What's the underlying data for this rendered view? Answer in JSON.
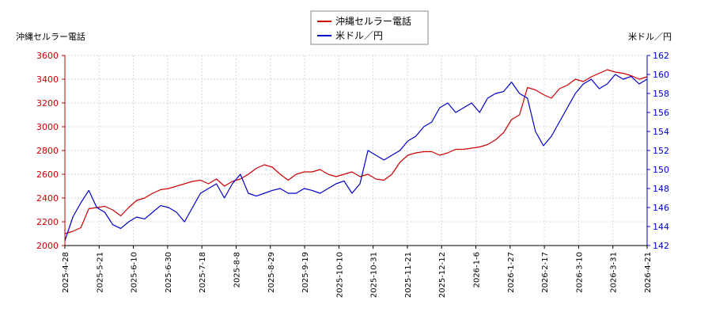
{
  "chart_data": {
    "type": "line",
    "legend_position": "top-center",
    "grid": true,
    "left_axis_label": "沖縄セルラー電話",
    "right_axis_label": "米ドル／円",
    "x_tick_labels": [
      "2025-4-28",
      "2025-5-21",
      "2025-6-10",
      "2025-6-30",
      "2025-7-18",
      "2025-8-8",
      "2025-8-29",
      "2025-9-19",
      "2025-10-10",
      "2025-10-31",
      "2025-11-21",
      "2025-12-12",
      "2026-1-6",
      "2026-1-27",
      "2026-2-17",
      "2026-3-10",
      "2026-3-31",
      "2026-4-21"
    ],
    "y_left_range": [
      2000,
      3600
    ],
    "y_left_ticks": [
      2000,
      2200,
      2400,
      2600,
      2800,
      3000,
      3200,
      3400,
      3600
    ],
    "y_right_range": [
      142,
      162
    ],
    "y_right_ticks": [
      142,
      144,
      146,
      148,
      150,
      152,
      154,
      156,
      158,
      160,
      162
    ],
    "series": [
      {
        "name": "沖縄セルラー電話",
        "axis": "left",
        "color": "#cc0000",
        "values": [
          [
            0,
            2100
          ],
          [
            1,
            2120
          ],
          [
            2,
            2150
          ],
          [
            3,
            2310
          ],
          [
            4,
            2320
          ],
          [
            5,
            2330
          ],
          [
            6,
            2300
          ],
          [
            7,
            2250
          ],
          [
            8,
            2320
          ],
          [
            9,
            2380
          ],
          [
            10,
            2400
          ],
          [
            11,
            2440
          ],
          [
            12,
            2470
          ],
          [
            13,
            2480
          ],
          [
            14,
            2500
          ],
          [
            15,
            2520
          ],
          [
            16,
            2540
          ],
          [
            17,
            2550
          ],
          [
            18,
            2520
          ],
          [
            19,
            2560
          ],
          [
            20,
            2500
          ],
          [
            21,
            2540
          ],
          [
            22,
            2560
          ],
          [
            23,
            2600
          ],
          [
            24,
            2650
          ],
          [
            25,
            2680
          ],
          [
            26,
            2660
          ],
          [
            27,
            2600
          ],
          [
            28,
            2550
          ],
          [
            29,
            2600
          ],
          [
            30,
            2620
          ],
          [
            31,
            2620
          ],
          [
            32,
            2640
          ],
          [
            33,
            2600
          ],
          [
            34,
            2580
          ],
          [
            35,
            2600
          ],
          [
            36,
            2620
          ],
          [
            37,
            2580
          ],
          [
            38,
            2600
          ],
          [
            39,
            2560
          ],
          [
            40,
            2550
          ],
          [
            41,
            2600
          ],
          [
            42,
            2700
          ],
          [
            43,
            2760
          ],
          [
            44,
            2780
          ],
          [
            45,
            2790
          ],
          [
            46,
            2790
          ],
          [
            47,
            2760
          ],
          [
            48,
            2780
          ],
          [
            49,
            2810
          ],
          [
            50,
            2810
          ],
          [
            51,
            2820
          ],
          [
            52,
            2830
          ],
          [
            53,
            2850
          ],
          [
            54,
            2890
          ],
          [
            55,
            2950
          ],
          [
            56,
            3060
          ],
          [
            57,
            3100
          ],
          [
            58,
            3330
          ],
          [
            59,
            3310
          ],
          [
            60,
            3270
          ],
          [
            61,
            3240
          ],
          [
            62,
            3320
          ],
          [
            63,
            3350
          ],
          [
            64,
            3400
          ],
          [
            65,
            3380
          ],
          [
            66,
            3420
          ],
          [
            67,
            3450
          ],
          [
            68,
            3480
          ],
          [
            69,
            3460
          ],
          [
            70,
            3450
          ],
          [
            71,
            3430
          ],
          [
            72,
            3400
          ],
          [
            73,
            3420
          ]
        ]
      },
      {
        "name": "米ドル／円",
        "axis": "right",
        "color": "#0000cc",
        "values": [
          [
            0,
            142.5
          ],
          [
            1,
            145.0
          ],
          [
            2,
            146.5
          ],
          [
            3,
            147.8
          ],
          [
            4,
            146.0
          ],
          [
            5,
            145.5
          ],
          [
            6,
            144.2
          ],
          [
            7,
            143.8
          ],
          [
            8,
            144.5
          ],
          [
            9,
            145.0
          ],
          [
            10,
            144.8
          ],
          [
            11,
            145.5
          ],
          [
            12,
            146.2
          ],
          [
            13,
            146.0
          ],
          [
            14,
            145.5
          ],
          [
            15,
            144.5
          ],
          [
            16,
            146.0
          ],
          [
            17,
            147.5
          ],
          [
            18,
            148.0
          ],
          [
            19,
            148.5
          ],
          [
            20,
            147.0
          ],
          [
            21,
            148.5
          ],
          [
            22,
            149.5
          ],
          [
            23,
            147.5
          ],
          [
            24,
            147.2
          ],
          [
            25,
            147.5
          ],
          [
            26,
            147.8
          ],
          [
            27,
            148.0
          ],
          [
            28,
            147.5
          ],
          [
            29,
            147.5
          ],
          [
            30,
            148.0
          ],
          [
            31,
            147.8
          ],
          [
            32,
            147.5
          ],
          [
            33,
            148.0
          ],
          [
            34,
            148.5
          ],
          [
            35,
            148.8
          ],
          [
            36,
            147.5
          ],
          [
            37,
            148.5
          ],
          [
            38,
            152.0
          ],
          [
            39,
            151.5
          ],
          [
            40,
            151.0
          ],
          [
            41,
            151.5
          ],
          [
            42,
            152.0
          ],
          [
            43,
            153.0
          ],
          [
            44,
            153.5
          ],
          [
            45,
            154.5
          ],
          [
            46,
            155.0
          ],
          [
            47,
            156.5
          ],
          [
            48,
            157.0
          ],
          [
            49,
            156.0
          ],
          [
            50,
            156.5
          ],
          [
            51,
            157.0
          ],
          [
            52,
            156.0
          ],
          [
            53,
            157.5
          ],
          [
            54,
            158.0
          ],
          [
            55,
            158.2
          ],
          [
            56,
            159.2
          ],
          [
            57,
            158.0
          ],
          [
            58,
            157.5
          ],
          [
            59,
            154.0
          ],
          [
            60,
            152.5
          ],
          [
            61,
            153.5
          ],
          [
            62,
            155.0
          ],
          [
            63,
            156.5
          ],
          [
            64,
            158.0
          ],
          [
            65,
            159.0
          ],
          [
            66,
            159.5
          ],
          [
            67,
            158.5
          ],
          [
            68,
            159.0
          ],
          [
            69,
            160.0
          ],
          [
            70,
            159.5
          ],
          [
            71,
            159.8
          ],
          [
            72,
            159.0
          ],
          [
            73,
            159.5
          ]
        ]
      }
    ]
  }
}
